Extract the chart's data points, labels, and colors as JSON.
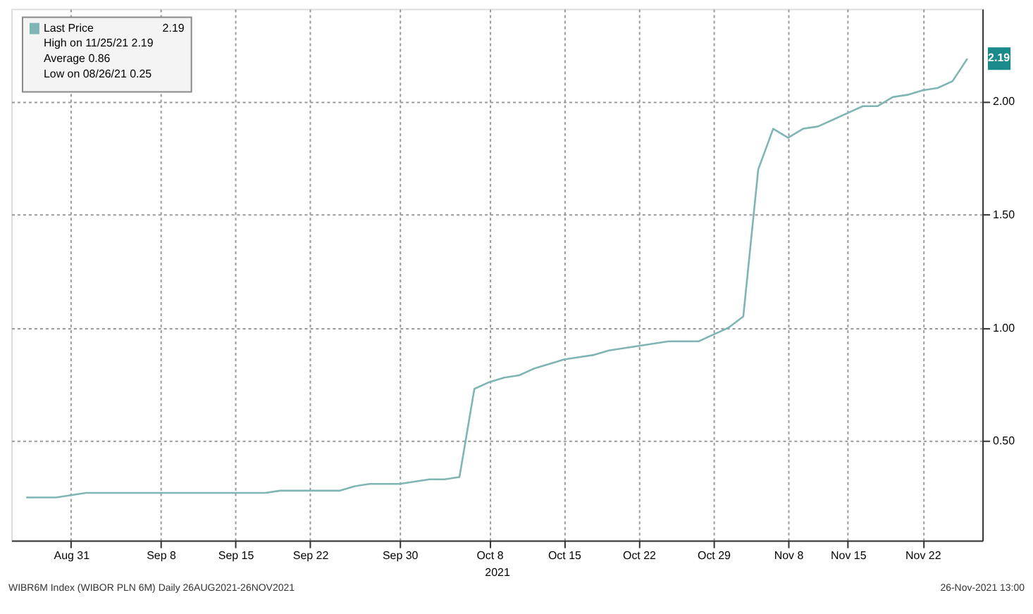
{
  "chart_data": {
    "type": "line",
    "xlabel": "2021",
    "categories": [
      null,
      null,
      null,
      "Aug 31",
      null,
      null,
      null,
      null,
      null,
      "Sep 8",
      null,
      null,
      null,
      null,
      "Sep 15",
      null,
      null,
      null,
      null,
      "Sep 22",
      null,
      null,
      null,
      null,
      null,
      "Sep 30",
      null,
      null,
      null,
      null,
      null,
      "Oct 8",
      null,
      null,
      null,
      null,
      "Oct 15",
      null,
      null,
      null,
      null,
      "Oct 22",
      null,
      null,
      null,
      null,
      "Oct 29",
      null,
      null,
      null,
      null,
      "Nov 8",
      null,
      null,
      null,
      "Nov 15",
      null,
      null,
      null,
      null,
      "Nov 22",
      null,
      null,
      null
    ],
    "series": [
      {
        "name": "Last Price",
        "color": "#7fb5b5",
        "values": [
          0.25,
          0.25,
          0.25,
          0.26,
          0.27,
          0.27,
          0.27,
          0.27,
          0.27,
          0.27,
          0.27,
          0.27,
          0.27,
          0.27,
          0.27,
          0.27,
          0.27,
          0.28,
          0.28,
          0.28,
          0.28,
          0.28,
          0.3,
          0.31,
          0.31,
          0.31,
          0.32,
          0.33,
          0.33,
          0.34,
          0.73,
          0.76,
          0.78,
          0.79,
          0.82,
          0.84,
          0.86,
          0.87,
          0.88,
          0.9,
          0.91,
          0.92,
          0.93,
          0.94,
          0.94,
          0.94,
          0.97,
          1.0,
          1.05,
          1.7,
          1.88,
          1.84,
          1.88,
          1.89,
          1.92,
          1.95,
          1.98,
          1.98,
          2.02,
          2.03,
          2.05,
          2.06,
          2.09,
          2.19
        ]
      }
    ],
    "ylim": [
      0.06,
      2.41
    ],
    "yticks": [
      {
        "value": 0.5,
        "label": "0.50"
      },
      {
        "value": 1.0,
        "label": "1.00"
      },
      {
        "value": 1.5,
        "label": "1.50"
      },
      {
        "value": 2.0,
        "label": "2.00"
      }
    ],
    "grid": true,
    "legend": "top left",
    "line_style": "solid",
    "annotations": [
      "2.19",
      "High on 11/25/21 2.19",
      "Average 0.86",
      "Low on 08/26/21 0.25",
      "2.19",
      "WIBR6M Index (WIBOR PLN 6M) Daily 26AUG2021-26NOV2021",
      "26-Nov-2021 13:00"
    ]
  }
}
